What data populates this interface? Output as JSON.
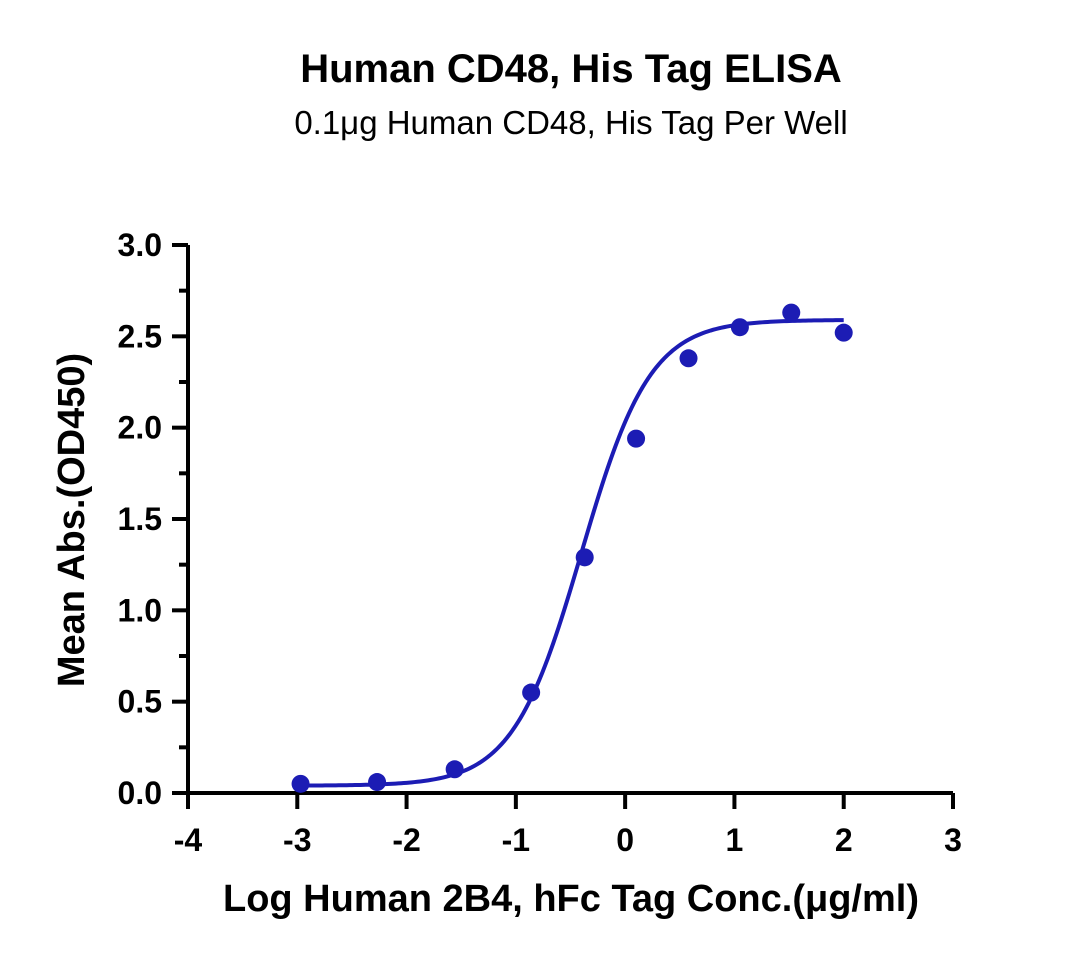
{
  "chart_data": {
    "type": "scatter",
    "title": "Human CD48, His Tag ELISA",
    "subtitle": "0.1μg Human CD48, His Tag Per Well",
    "xlabel": "Log Human 2B4, hFc Tag Conc.(μg/ml)",
    "ylabel": "Mean Abs.(OD450)",
    "xlim": [
      -4,
      3
    ],
    "ylim": [
      0,
      3
    ],
    "x_ticks": [
      "-4",
      "-3",
      "-2",
      "-1",
      "0",
      "1",
      "2",
      "3"
    ],
    "y_ticks": [
      "0.0",
      "0.5",
      "1.0",
      "1.5",
      "2.0",
      "2.5",
      "3.0"
    ],
    "grid": false,
    "legend": "none",
    "series": [
      {
        "color": "#1c1cb4",
        "x": [
          -2.97,
          -2.27,
          -1.56,
          -0.86,
          -0.37,
          0.1,
          0.58,
          1.05,
          1.52,
          2.0
        ],
        "y": [
          0.05,
          0.06,
          0.13,
          0.55,
          1.29,
          1.94,
          2.38,
          2.55,
          2.63,
          2.52
        ]
      }
    ],
    "fit_curve": {
      "color": "#1c1cb4",
      "bottom": 0.04,
      "top": 2.59,
      "log_ec50": -0.4,
      "hill_slope": 1.38,
      "x_range": [
        -2.97,
        2.0
      ]
    }
  }
}
